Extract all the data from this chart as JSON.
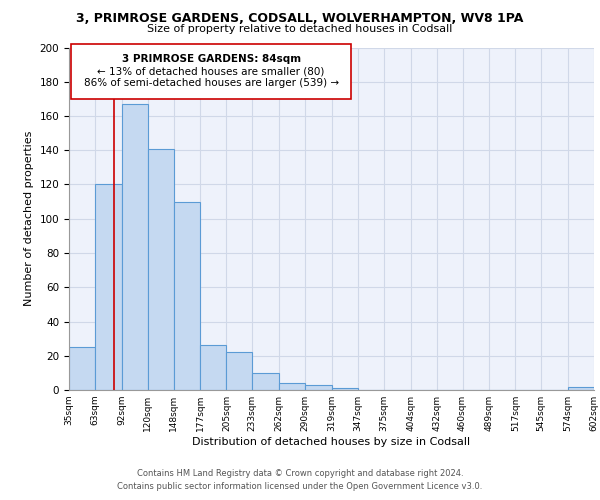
{
  "title": "3, PRIMROSE GARDENS, CODSALL, WOLVERHAMPTON, WV8 1PA",
  "subtitle": "Size of property relative to detached houses in Codsall",
  "xlabel": "Distribution of detached houses by size in Codsall",
  "ylabel": "Number of detached properties",
  "bin_edges": [
    35,
    63,
    92,
    120,
    148,
    177,
    205,
    233,
    262,
    290,
    319,
    347,
    375,
    404,
    432,
    460,
    489,
    517,
    545,
    574,
    602
  ],
  "bar_heights": [
    25,
    120,
    167,
    141,
    110,
    26,
    22,
    10,
    4,
    3,
    1,
    0,
    0,
    0,
    0,
    0,
    0,
    0,
    0,
    2
  ],
  "bar_color": "#c5d9f1",
  "bar_edge_color": "#5b9bd5",
  "bar_edge_width": 0.8,
  "grid_color": "#d0d8e8",
  "background_color": "#eef2fb",
  "vline_x": 84,
  "vline_color": "#cc0000",
  "annotation_text_line1": "3 PRIMROSE GARDENS: 84sqm",
  "annotation_text_line2": "← 13% of detached houses are smaller (80)",
  "annotation_text_line3": "86% of semi-detached houses are larger (539) →",
  "ylim": [
    0,
    200
  ],
  "yticks": [
    0,
    20,
    40,
    60,
    80,
    100,
    120,
    140,
    160,
    180,
    200
  ],
  "tick_labels": [
    "35sqm",
    "63sqm",
    "92sqm",
    "120sqm",
    "148sqm",
    "177sqm",
    "205sqm",
    "233sqm",
    "262sqm",
    "290sqm",
    "319sqm",
    "347sqm",
    "375sqm",
    "404sqm",
    "432sqm",
    "460sqm",
    "489sqm",
    "517sqm",
    "545sqm",
    "574sqm",
    "602sqm"
  ],
  "footer_line1": "Contains HM Land Registry data © Crown copyright and database right 2024.",
  "footer_line2": "Contains public sector information licensed under the Open Government Licence v3.0."
}
